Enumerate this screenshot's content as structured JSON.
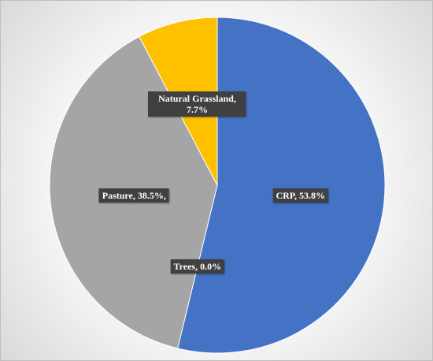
{
  "chart_data": {
    "type": "pie",
    "categories": [
      "CRP",
      "Trees",
      "Pasture",
      "Natural Grassland"
    ],
    "values": [
      53.8,
      0.0,
      38.5,
      7.7
    ],
    "value_labels": [
      "CRP, 53.8%",
      "Trees, 0.0%",
      "Pasture, 38.5%,",
      "Natural Grassland, 7.7%"
    ],
    "colors": [
      "#4472c4",
      "#ed7d31",
      "#a5a5a5",
      "#ffc000"
    ]
  }
}
